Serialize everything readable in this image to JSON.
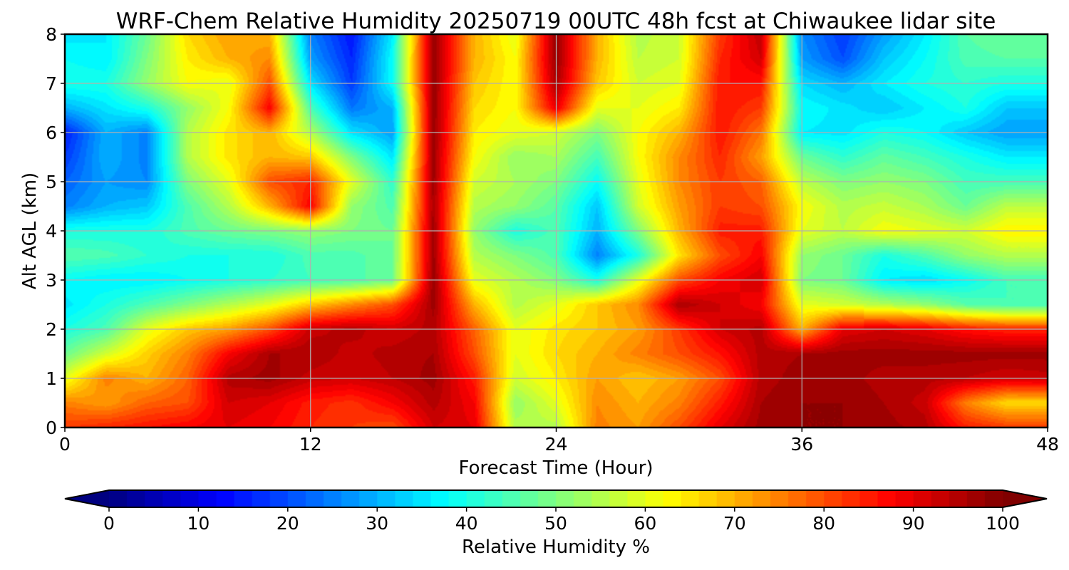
{
  "chart_data": {
    "type": "heatmap",
    "title": "WRF-Chem Relative Humidity 20250719 00UTC 48h fcst at Chiwaukee lidar site",
    "xlabel": "Forecast Time (Hour)",
    "ylabel": "Alt AGL (km)",
    "xlim": [
      0,
      48
    ],
    "ylim": [
      0,
      8
    ],
    "xticks": [
      0,
      12,
      24,
      36,
      48
    ],
    "yticks": [
      0,
      1,
      2,
      3,
      4,
      5,
      6,
      7,
      8
    ],
    "grid": true,
    "colormap": "jet",
    "colorbar": {
      "label": "Relative Humidity %",
      "range": [
        0,
        100
      ],
      "ticks": [
        0,
        10,
        20,
        30,
        40,
        50,
        60,
        70,
        80,
        90,
        100
      ],
      "extend": "both",
      "orientation": "horizontal"
    },
    "x": [
      0,
      2,
      4,
      6,
      8,
      10,
      12,
      14,
      16,
      18,
      20,
      22,
      24,
      26,
      28,
      30,
      32,
      34,
      36,
      38,
      40,
      42,
      44,
      46,
      48
    ],
    "y": [
      0,
      0.5,
      1,
      1.5,
      2,
      2.5,
      3,
      3.5,
      4,
      4.5,
      5,
      5.5,
      6,
      6.5,
      7,
      7.5,
      8
    ],
    "z": [
      [
        82,
        84,
        86,
        88,
        90,
        88,
        84,
        82,
        80,
        92,
        90,
        55,
        55,
        75,
        72,
        80,
        90,
        97,
        98,
        98,
        97,
        95,
        85,
        82,
        82
      ],
      [
        75,
        72,
        78,
        80,
        92,
        90,
        85,
        83,
        88,
        95,
        88,
        52,
        60,
        74,
        70,
        75,
        85,
        96,
        98,
        98,
        96,
        93,
        75,
        66,
        66
      ],
      [
        60,
        75,
        70,
        78,
        95,
        97,
        93,
        92,
        94,
        97,
        85,
        58,
        64,
        72,
        68,
        72,
        80,
        95,
        97,
        97,
        95,
        95,
        94,
        92,
        93
      ],
      [
        48,
        58,
        67,
        75,
        88,
        96,
        96,
        93,
        95,
        96,
        80,
        60,
        66,
        70,
        75,
        80,
        86,
        95,
        96,
        97,
        97,
        97,
        97,
        97,
        97
      ],
      [
        40,
        45,
        60,
        68,
        72,
        80,
        93,
        95,
        92,
        95,
        78,
        60,
        65,
        68,
        72,
        82,
        92,
        95,
        70,
        90,
        92,
        90,
        86,
        84,
        84
      ],
      [
        35,
        40,
        45,
        50,
        55,
        60,
        68,
        74,
        80,
        97,
        70,
        55,
        60,
        68,
        74,
        96,
        92,
        88,
        60,
        58,
        55,
        52,
        46,
        44,
        44
      ],
      [
        38,
        36,
        36,
        38,
        40,
        42,
        44,
        45,
        48,
        98,
        60,
        55,
        50,
        40,
        60,
        80,
        88,
        92,
        50,
        48,
        36,
        34,
        38,
        44,
        44
      ],
      [
        46,
        45,
        42,
        40,
        40,
        40,
        45,
        45,
        48,
        97,
        55,
        50,
        45,
        25,
        40,
        65,
        80,
        88,
        52,
        48,
        40,
        45,
        52,
        55,
        55
      ],
      [
        40,
        40,
        40,
        45,
        48,
        50,
        52,
        50,
        48,
        97,
        52,
        40,
        45,
        30,
        50,
        70,
        85,
        85,
        60,
        56,
        62,
        60,
        58,
        64,
        64
      ],
      [
        25,
        30,
        32,
        45,
        55,
        70,
        88,
        52,
        45,
        96,
        55,
        52,
        46,
        32,
        58,
        72,
        82,
        80,
        62,
        55,
        57,
        54,
        48,
        56,
        56
      ],
      [
        22,
        28,
        26,
        50,
        60,
        80,
        84,
        60,
        42,
        97,
        58,
        54,
        50,
        38,
        60,
        74,
        82,
        78,
        56,
        50,
        52,
        50,
        44,
        44,
        44
      ],
      [
        18,
        30,
        25,
        55,
        65,
        70,
        68,
        50,
        35,
        97,
        62,
        52,
        54,
        44,
        62,
        74,
        84,
        72,
        48,
        42,
        47,
        44,
        40,
        36,
        36
      ],
      [
        15,
        30,
        25,
        55,
        65,
        70,
        55,
        35,
        28,
        98,
        64,
        60,
        58,
        50,
        62,
        70,
        86,
        76,
        36,
        35,
        40,
        38,
        32,
        28,
        28
      ],
      [
        30,
        35,
        40,
        52,
        62,
        88,
        45,
        24,
        30,
        98,
        66,
        62,
        90,
        60,
        60,
        64,
        86,
        82,
        38,
        35,
        32,
        36,
        40,
        32,
        32
      ],
      [
        40,
        40,
        52,
        62,
        60,
        80,
        35,
        18,
        38,
        98,
        68,
        62,
        96,
        68,
        58,
        60,
        86,
        86,
        34,
        30,
        36,
        40,
        42,
        40,
        40
      ],
      [
        38,
        36,
        50,
        64,
        70,
        74,
        28,
        16,
        38,
        98,
        70,
        62,
        98,
        70,
        56,
        58,
        84,
        92,
        28,
        20,
        32,
        38,
        45,
        46,
        46
      ],
      [
        35,
        36,
        48,
        66,
        72,
        70,
        25,
        14,
        36,
        98,
        70,
        60,
        98,
        70,
        55,
        58,
        82,
        94,
        26,
        18,
        28,
        36,
        46,
        48,
        48
      ]
    ]
  }
}
